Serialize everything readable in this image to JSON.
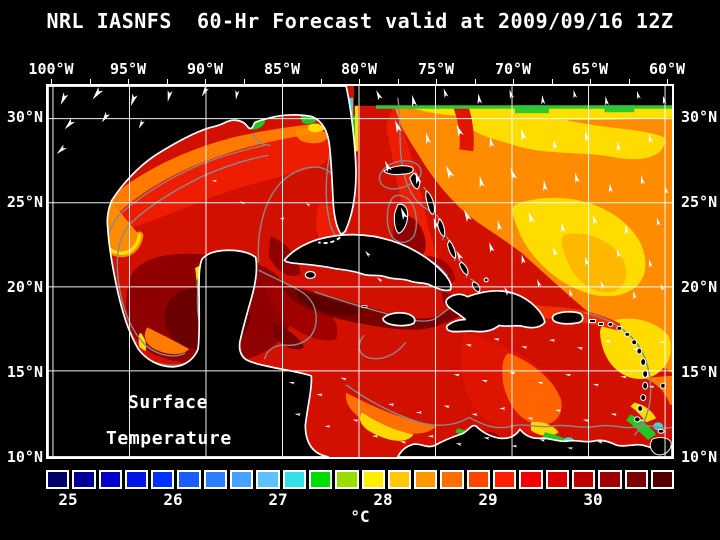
{
  "title": "NRL IASNFS  60-Hr Forecast valid at 2009/09/16 12Z",
  "map": {
    "overlay_label_line1": "Surface",
    "overlay_label_line2": "Temperature",
    "lon_ticks": [
      "100°W",
      "95°W",
      "90°W",
      "85°W",
      "80°W",
      "75°W",
      "70°W",
      "65°W",
      "60°W"
    ],
    "lat_ticks": [
      "30°N",
      "25°N",
      "20°N",
      "15°N",
      "10°N"
    ]
  },
  "colorbar": {
    "unit": "°C",
    "tick_labels": [
      "25",
      "26",
      "27",
      "28",
      "29",
      "30"
    ],
    "segment_colors": [
      "#000066",
      "#000099",
      "#0000CC",
      "#0014E6",
      "#0033FF",
      "#1A5CFF",
      "#2E7DFF",
      "#47A1FF",
      "#5CC3FF",
      "#35E0E8",
      "#00DD00",
      "#99DD00",
      "#FFEE00",
      "#FFC800",
      "#FF9600",
      "#FF6E00",
      "#FF4600",
      "#FF1E00",
      "#F50000",
      "#DC0000",
      "#BE0000",
      "#A00000",
      "#7D0000",
      "#550000"
    ]
  },
  "palette": {
    "sea_base_red": "#D21000",
    "bright_red": "#EE1C00",
    "dark_red": "#900000",
    "deep_maroon": "#660000",
    "orange": "#FF7A00",
    "gold": "#FFB800",
    "yellow": "#FFE000",
    "green": "#21C821",
    "cyan": "#3CD8D8",
    "contour_gray": "#8A8A8A",
    "land": "#000000",
    "coastline": "#FFFFFF"
  }
}
